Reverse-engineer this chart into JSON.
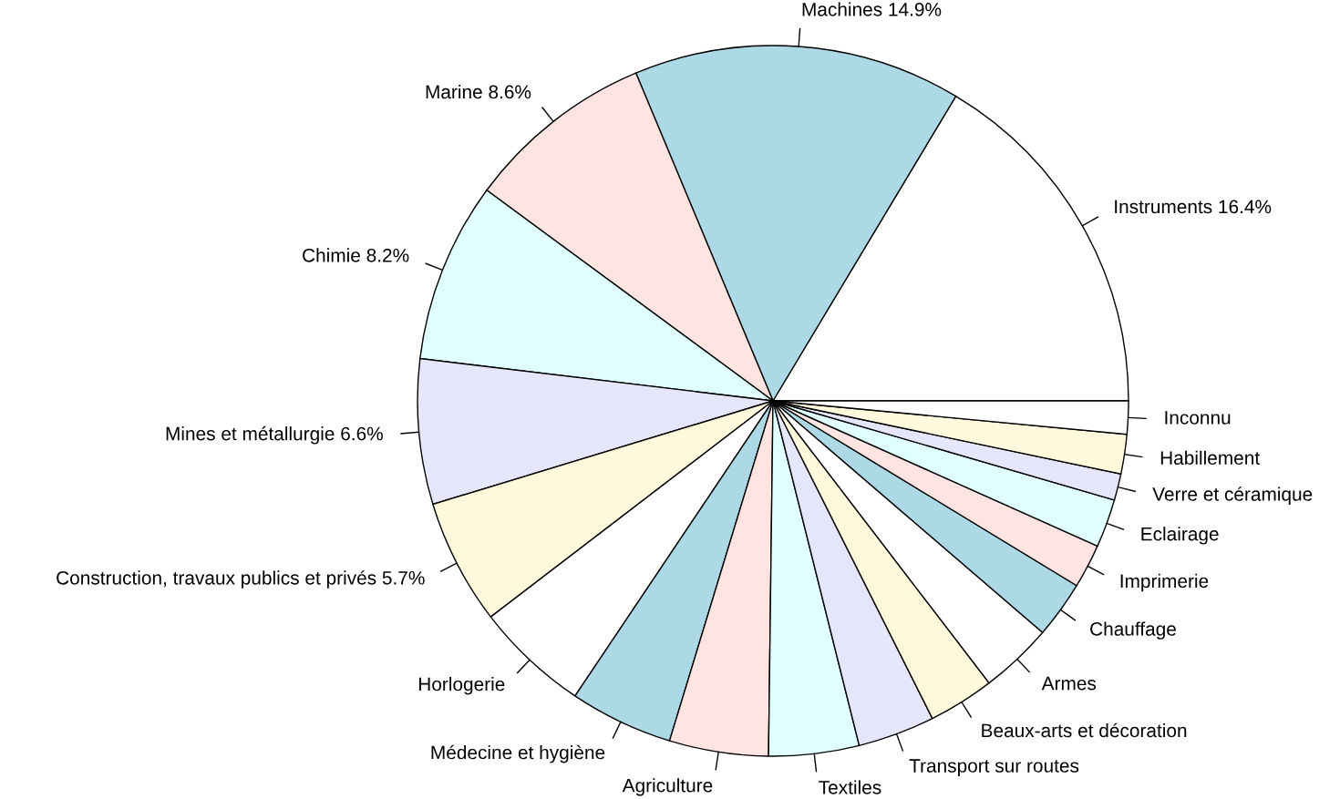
{
  "chart_data": {
    "type": "pie",
    "categories": [
      "Instruments 16.4%",
      "Machines 14.9%",
      "Marine 8.6%",
      "Chimie 8.2%",
      "Mines et métallurgie 6.6%",
      "Construction, travaux publics et privés 5.7%",
      "Horlogerie",
      "Médecine et hygiène",
      "Agriculture",
      "Textiles",
      "Transport sur routes",
      "Beaux-arts et décoration",
      "Armes",
      "Chauffage",
      "Imprimerie",
      "Eclairage",
      "Verre et céramique",
      "Habillement",
      "Inconnu"
    ],
    "values": [
      16.4,
      14.9,
      8.6,
      8.2,
      6.6,
      5.7,
      5.2,
      4.7,
      4.5,
      4.1,
      3.5,
      3.0,
      3.3,
      2.6,
      2.0,
      2.2,
      1.2,
      1.8,
      1.5
    ],
    "colors": [
      "#ffffff",
      "#add8e6",
      "#ffe4e1",
      "#e0ffff",
      "#e6e6fa",
      "#fff8dc",
      "#ffffff",
      "#add8e6",
      "#ffe4e1",
      "#e0ffff",
      "#e6e6fa",
      "#fff8dc",
      "#ffffff",
      "#add8e6",
      "#ffe4e1",
      "#e0ffff",
      "#e6e6fa",
      "#fff8dc",
      "#ffffff"
    ]
  }
}
